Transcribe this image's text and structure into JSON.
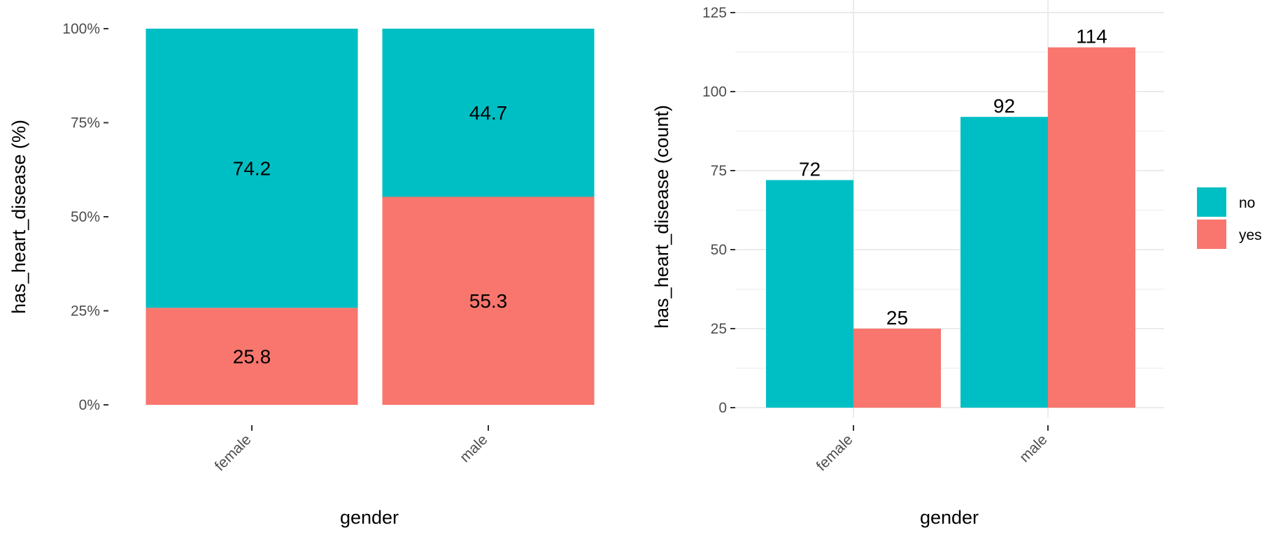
{
  "chart_data": [
    {
      "type": "bar",
      "stacked": true,
      "percent": true,
      "categories": [
        "female",
        "male"
      ],
      "series": [
        {
          "name": "no",
          "values": [
            74.2,
            44.7
          ],
          "color": "#00BFC4"
        },
        {
          "name": "yes",
          "values": [
            25.8,
            55.3
          ],
          "color": "#F8766D"
        }
      ],
      "data_labels": [
        [
          "74.2",
          "44.7"
        ],
        [
          "25.8",
          "55.3"
        ]
      ],
      "xlabel": "gender",
      "ylabel": "has_heart_disease  (%)",
      "ylim": [
        0,
        100
      ],
      "yticks": [
        0,
        25,
        50,
        75,
        100
      ],
      "ytick_labels": [
        "0%",
        "25%",
        "50%",
        "75%",
        "100%"
      ],
      "grid": false
    },
    {
      "type": "bar",
      "stacked": false,
      "categories": [
        "female",
        "male"
      ],
      "series": [
        {
          "name": "no",
          "values": [
            72,
            92
          ],
          "color": "#00BFC4"
        },
        {
          "name": "yes",
          "values": [
            25,
            114
          ],
          "color": "#F8766D"
        }
      ],
      "data_labels": [
        [
          "72",
          "92"
        ],
        [
          "25",
          "114"
        ]
      ],
      "xlabel": "gender",
      "ylabel": "has_heart_disease  (count)",
      "ylim": [
        0,
        125
      ],
      "yticks": [
        0,
        25,
        50,
        75,
        100,
        125
      ],
      "ytick_labels": [
        "0",
        "25",
        "50",
        "75",
        "100",
        "125"
      ],
      "grid": true
    }
  ],
  "legend": {
    "placement": "right",
    "entries": [
      {
        "label": "no",
        "color": "#00BFC4"
      },
      {
        "label": "yes",
        "color": "#F8766D"
      }
    ]
  }
}
